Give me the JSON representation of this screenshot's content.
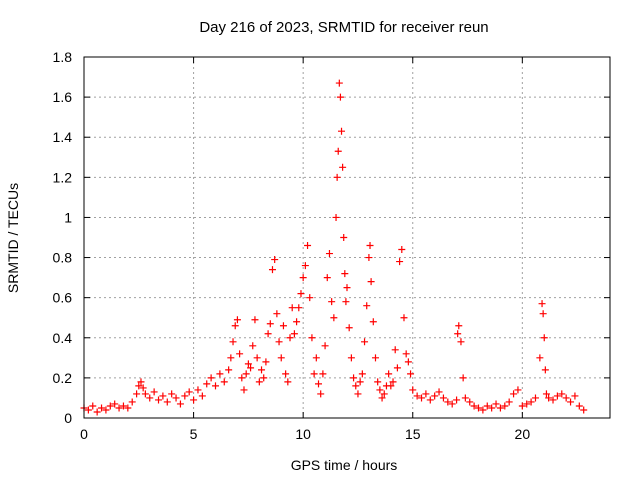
{
  "chart_data": {
    "type": "scatter",
    "title": "Day 216 of 2023, SRMTID for receiver reun",
    "xlabel": "GPS time / hours",
    "ylabel": "SRMTID / TECUs",
    "xlim": [
      0,
      24
    ],
    "ylim": [
      0,
      1.8
    ],
    "x_ticks": [
      0,
      5,
      10,
      15,
      20
    ],
    "x_tick_labels": [
      "0",
      "5",
      "10",
      "15",
      "20"
    ],
    "y_ticks": [
      0,
      0.2,
      0.4,
      0.6,
      0.8,
      1.0,
      1.2,
      1.4,
      1.6,
      1.8
    ],
    "y_tick_labels": [
      "0",
      "0.2",
      "0.4",
      "0.6",
      "0.8",
      "1",
      "1.2",
      "1.4",
      "1.6",
      "1.8"
    ],
    "grid": true,
    "marker": "+",
    "color": "#ff0000",
    "series": [
      {
        "name": "SRMTID",
        "x": [
          0.0,
          0.2,
          0.4,
          0.6,
          0.8,
          1.0,
          1.2,
          1.4,
          1.6,
          1.8,
          2.0,
          2.2,
          2.4,
          2.5,
          2.6,
          2.7,
          2.8,
          3.0,
          3.2,
          3.4,
          3.6,
          3.8,
          4.0,
          4.2,
          4.4,
          4.6,
          4.8,
          5.0,
          5.2,
          5.4,
          5.6,
          5.8,
          6.0,
          6.2,
          6.4,
          6.6,
          6.7,
          6.8,
          6.9,
          7.0,
          7.1,
          7.2,
          7.3,
          7.4,
          7.5,
          7.6,
          7.7,
          7.8,
          7.9,
          8.0,
          8.1,
          8.2,
          8.3,
          8.4,
          8.5,
          8.6,
          8.7,
          8.8,
          8.9,
          9.0,
          9.1,
          9.2,
          9.3,
          9.4,
          9.5,
          9.6,
          9.7,
          9.8,
          9.9,
          10.0,
          10.1,
          10.2,
          10.3,
          10.4,
          10.5,
          10.6,
          10.7,
          10.8,
          10.9,
          11.0,
          11.1,
          11.2,
          11.3,
          11.4,
          11.5,
          11.55,
          11.6,
          11.65,
          11.7,
          11.75,
          11.8,
          11.85,
          11.9,
          11.95,
          12.0,
          12.1,
          12.2,
          12.3,
          12.4,
          12.5,
          12.6,
          12.7,
          12.8,
          12.9,
          13.0,
          13.05,
          13.1,
          13.2,
          13.3,
          13.4,
          13.5,
          13.6,
          13.7,
          13.8,
          13.9,
          14.0,
          14.1,
          14.2,
          14.3,
          14.4,
          14.5,
          14.6,
          14.7,
          14.8,
          14.9,
          15.0,
          15.2,
          15.4,
          15.6,
          15.8,
          16.0,
          16.2,
          16.4,
          16.6,
          16.8,
          17.0,
          17.05,
          17.1,
          17.2,
          17.3,
          17.4,
          17.6,
          17.8,
          18.0,
          18.2,
          18.4,
          18.6,
          18.8,
          19.0,
          19.2,
          19.4,
          19.6,
          19.8,
          20.0,
          20.2,
          20.4,
          20.6,
          20.8,
          20.9,
          20.95,
          21.0,
          21.05,
          21.1,
          21.2,
          21.4,
          21.6,
          21.8,
          22.0,
          22.2,
          22.4,
          22.6,
          22.8
        ],
        "y": [
          0.05,
          0.04,
          0.06,
          0.03,
          0.05,
          0.04,
          0.06,
          0.07,
          0.05,
          0.06,
          0.05,
          0.08,
          0.12,
          0.16,
          0.18,
          0.15,
          0.12,
          0.1,
          0.13,
          0.09,
          0.11,
          0.08,
          0.12,
          0.1,
          0.07,
          0.11,
          0.13,
          0.09,
          0.14,
          0.11,
          0.17,
          0.2,
          0.16,
          0.22,
          0.18,
          0.24,
          0.3,
          0.38,
          0.46,
          0.49,
          0.32,
          0.2,
          0.14,
          0.22,
          0.27,
          0.25,
          0.36,
          0.49,
          0.3,
          0.18,
          0.24,
          0.2,
          0.28,
          0.42,
          0.47,
          0.74,
          0.79,
          0.52,
          0.38,
          0.3,
          0.46,
          0.22,
          0.18,
          0.4,
          0.55,
          0.42,
          0.48,
          0.55,
          0.62,
          0.7,
          0.76,
          0.86,
          0.6,
          0.4,
          0.22,
          0.3,
          0.17,
          0.12,
          0.22,
          0.36,
          0.7,
          0.82,
          0.58,
          0.5,
          1.0,
          1.2,
          1.33,
          1.67,
          1.6,
          1.43,
          1.25,
          0.9,
          0.72,
          0.58,
          0.65,
          0.45,
          0.3,
          0.2,
          0.16,
          0.12,
          0.18,
          0.22,
          0.38,
          0.56,
          0.8,
          0.86,
          0.68,
          0.48,
          0.3,
          0.18,
          0.14,
          0.1,
          0.12,
          0.16,
          0.22,
          0.16,
          0.18,
          0.34,
          0.25,
          0.78,
          0.84,
          0.5,
          0.32,
          0.28,
          0.22,
          0.14,
          0.11,
          0.1,
          0.12,
          0.09,
          0.11,
          0.13,
          0.1,
          0.08,
          0.07,
          0.09,
          0.42,
          0.46,
          0.38,
          0.2,
          0.1,
          0.08,
          0.06,
          0.05,
          0.04,
          0.06,
          0.05,
          0.07,
          0.05,
          0.06,
          0.08,
          0.12,
          0.14,
          0.06,
          0.07,
          0.08,
          0.1,
          0.3,
          0.57,
          0.52,
          0.4,
          0.24,
          0.12,
          0.1,
          0.09,
          0.11,
          0.12,
          0.1,
          0.08,
          0.11,
          0.06,
          0.04
        ]
      }
    ]
  }
}
